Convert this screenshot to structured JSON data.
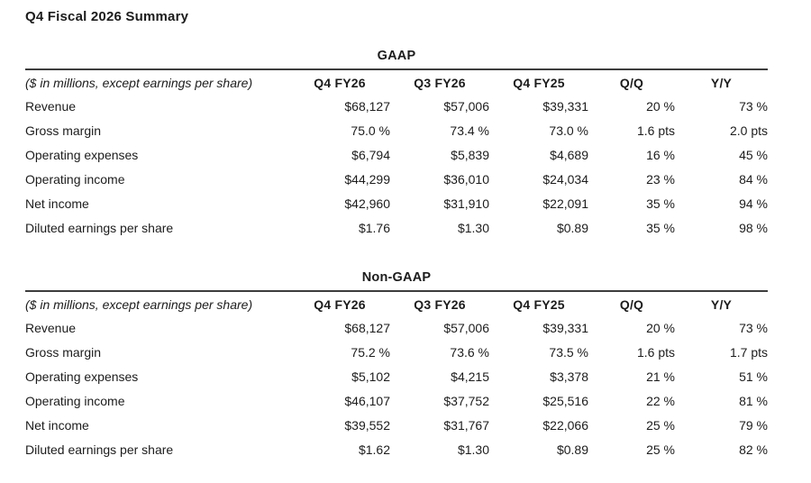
{
  "page": {
    "title": "Q4 Fiscal 2026 Summary"
  },
  "colors": {
    "background": "#ffffff",
    "text": "#1c1c1c",
    "rule": "#3d3d3d"
  },
  "tables": [
    {
      "caption": "GAAP",
      "unit_label": "($ in millions, except earnings per share)",
      "columns": [
        "Q4 FY26",
        "Q3 FY26",
        "Q4 FY25",
        "Q/Q",
        "Y/Y"
      ],
      "rows": [
        {
          "label": "Revenue",
          "values": [
            "$68,127",
            "$57,006",
            "$39,331",
            "20 %",
            "73 %"
          ]
        },
        {
          "label": "Gross margin",
          "values": [
            "75.0 %",
            "73.4 %",
            "73.0 %",
            "1.6 pts",
            "2.0 pts"
          ]
        },
        {
          "label": "Operating expenses",
          "values": [
            "$6,794",
            "$5,839",
            "$4,689",
            "16 %",
            "45 %"
          ]
        },
        {
          "label": "Operating income",
          "values": [
            "$44,299",
            "$36,010",
            "$24,034",
            "23 %",
            "84 %"
          ]
        },
        {
          "label": "Net income",
          "values": [
            "$42,960",
            "$31,910",
            "$22,091",
            "35 %",
            "94 %"
          ]
        },
        {
          "label": "Diluted earnings per share",
          "values": [
            "$1.76",
            "$1.30",
            "$0.89",
            "35 %",
            "98 %"
          ]
        }
      ]
    },
    {
      "caption": "Non-GAAP",
      "unit_label": "($ in millions, except earnings per share)",
      "columns": [
        "Q4 FY26",
        "Q3 FY26",
        "Q4 FY25",
        "Q/Q",
        "Y/Y"
      ],
      "rows": [
        {
          "label": "Revenue",
          "values": [
            "$68,127",
            "$57,006",
            "$39,331",
            "20 %",
            "73 %"
          ]
        },
        {
          "label": "Gross margin",
          "values": [
            "75.2 %",
            "73.6 %",
            "73.5 %",
            "1.6 pts",
            "1.7 pts"
          ]
        },
        {
          "label": "Operating expenses",
          "values": [
            "$5,102",
            "$4,215",
            "$3,378",
            "21 %",
            "51 %"
          ]
        },
        {
          "label": "Operating income",
          "values": [
            "$46,107",
            "$37,752",
            "$25,516",
            "22 %",
            "81 %"
          ]
        },
        {
          "label": "Net income",
          "values": [
            "$39,552",
            "$31,767",
            "$22,066",
            "25 %",
            "79 %"
          ]
        },
        {
          "label": "Diluted earnings per share",
          "values": [
            "$1.62",
            "$1.30",
            "$0.89",
            "25 %",
            "82 %"
          ]
        }
      ]
    }
  ]
}
